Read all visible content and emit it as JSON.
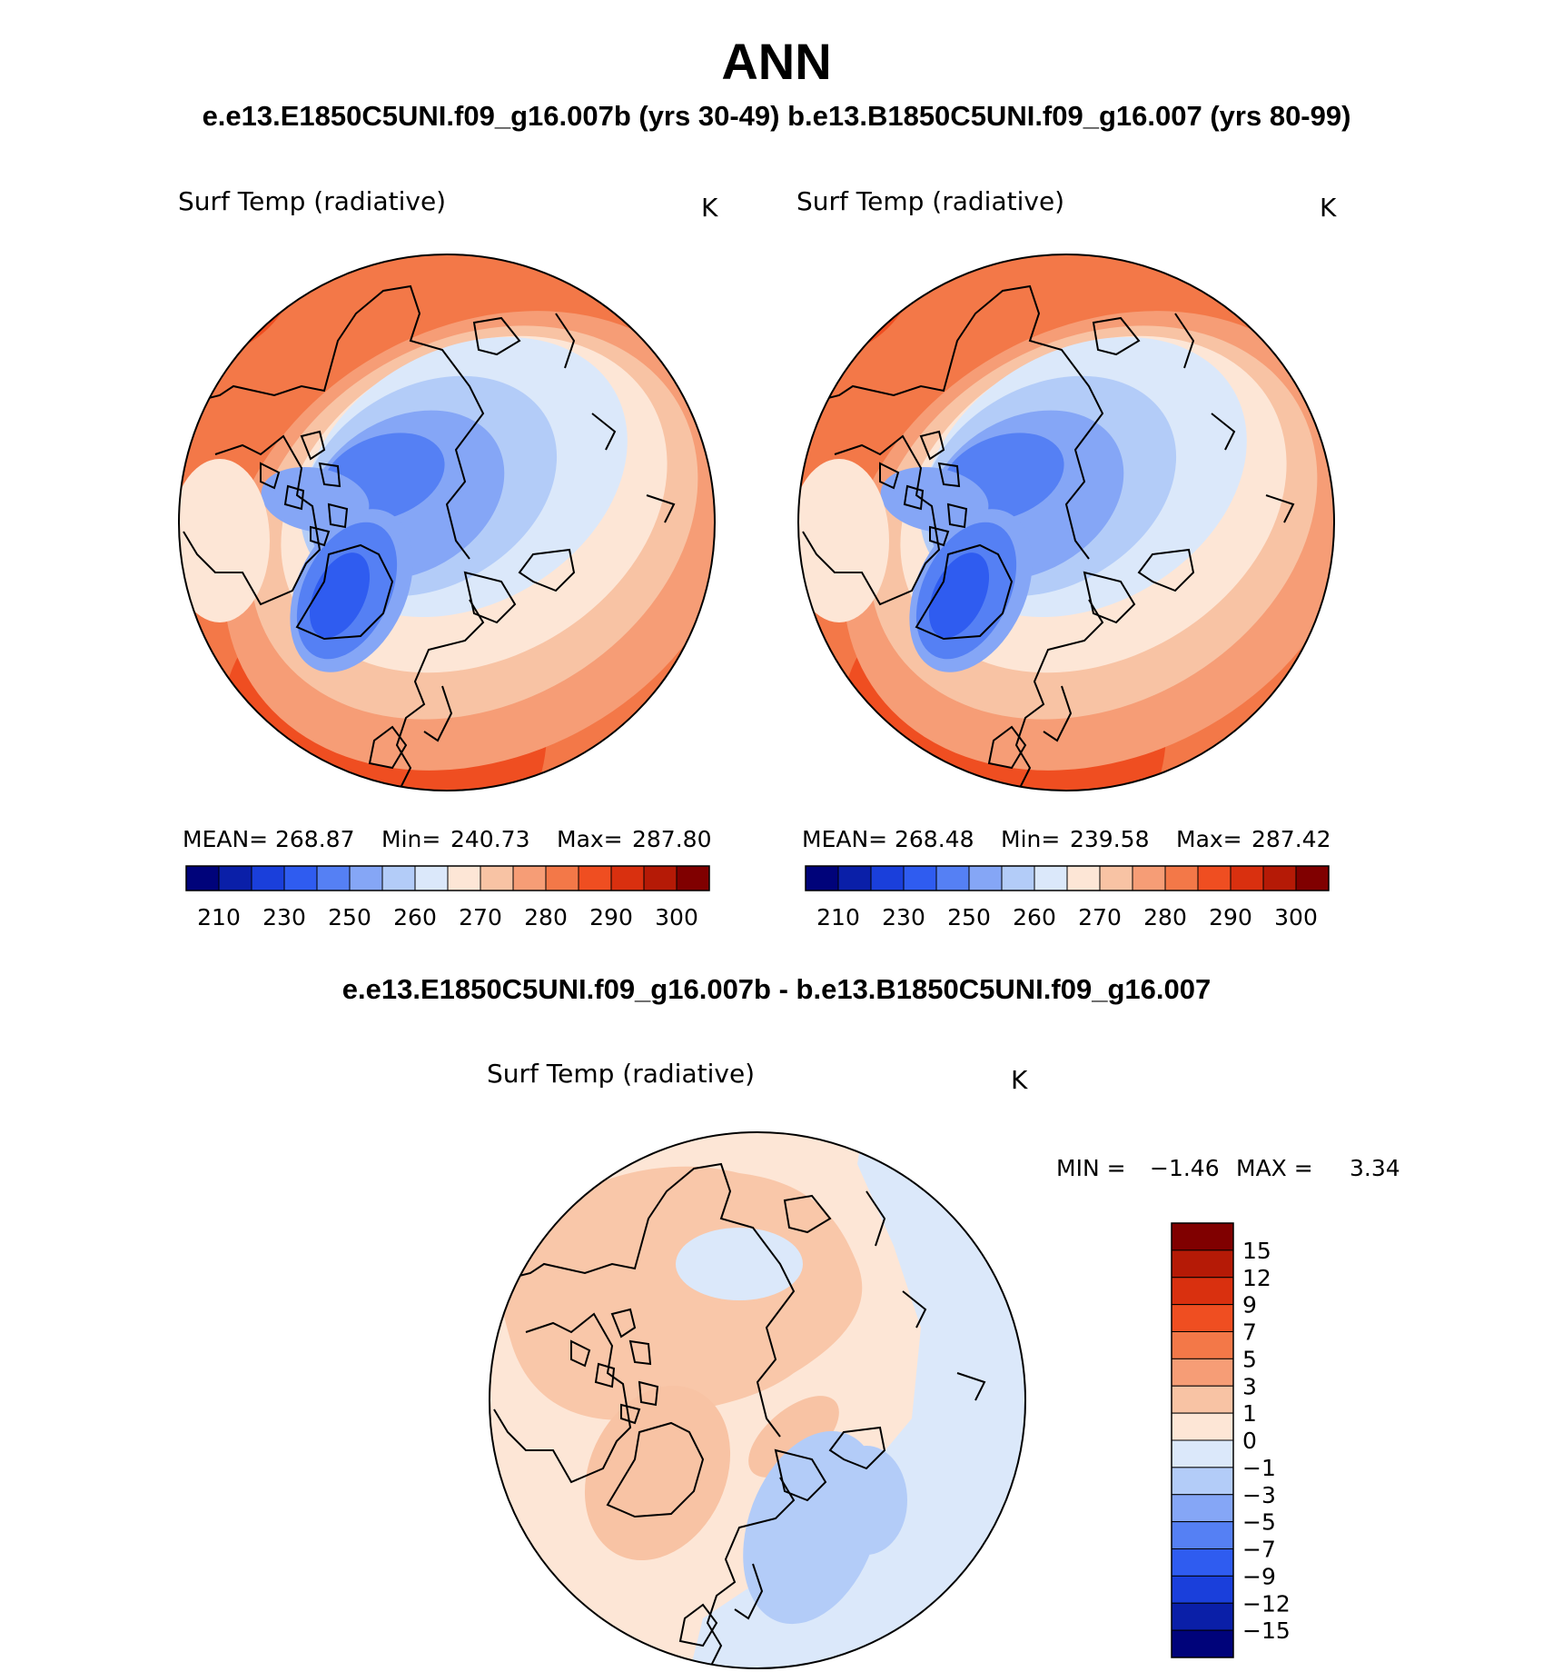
{
  "figure": {
    "title": "ANN",
    "subtitle": "e.e13.E1850C5UNI.f09_g16.007b (yrs 30-49)  b.e13.B1850C5UNI.f09_g16.007 (yrs 80-99)",
    "difference_title": "e.e13.E1850C5UNI.f09_g16.007b - b.e13.B1850C5UNI.f09_g16.007"
  },
  "chart_data": [
    {
      "type": "heatmap",
      "projection": "north polar stereographic",
      "title": "Surf Temp (radiative)",
      "units": "K",
      "stats": {
        "mean_label": "MEAN=",
        "mean": "268.87",
        "min_label": "Min=",
        "min": "240.73",
        "max_label": "Max=",
        "max": "287.80"
      },
      "colorbar": {
        "orientation": "horizontal",
        "tick_labels": [
          "210",
          "230",
          "250",
          "260",
          "270",
          "280",
          "290",
          "300"
        ],
        "colors": [
          "#00037a",
          "#0a1fa8",
          "#1a3fdb",
          "#2f5cf0",
          "#5580f4",
          "#85a6f6",
          "#b3ccf8",
          "#dbe8fa",
          "#fde6d6",
          "#f8c3a4",
          "#f69d76",
          "#f37848",
          "#ef4e21",
          "#d9300f",
          "#b51a06",
          "#800000"
        ]
      }
    },
    {
      "type": "heatmap",
      "projection": "north polar stereographic",
      "title": "Surf Temp (radiative)",
      "units": "K",
      "stats": {
        "mean_label": "MEAN=",
        "mean": "268.48",
        "min_label": "Min=",
        "min": "239.58",
        "max_label": "Max=",
        "max": "287.42"
      },
      "colorbar": {
        "orientation": "horizontal",
        "tick_labels": [
          "210",
          "230",
          "250",
          "260",
          "270",
          "280",
          "290",
          "300"
        ],
        "colors": [
          "#00037a",
          "#0a1fa8",
          "#1a3fdb",
          "#2f5cf0",
          "#5580f4",
          "#85a6f6",
          "#b3ccf8",
          "#dbe8fa",
          "#fde6d6",
          "#f8c3a4",
          "#f69d76",
          "#f37848",
          "#ef4e21",
          "#d9300f",
          "#b51a06",
          "#800000"
        ]
      }
    },
    {
      "type": "heatmap",
      "projection": "north polar stereographic",
      "title": "Surf Temp (radiative)",
      "units": "K",
      "stats": {
        "min_label": "MIN =",
        "min": "−1.46",
        "max_label": "MAX =",
        "max": "3.34"
      },
      "colorbar": {
        "orientation": "vertical",
        "tick_labels": [
          "15",
          "12",
          "9",
          "7",
          "5",
          "3",
          "1",
          "0",
          "−1",
          "−3",
          "−5",
          "−7",
          "−9",
          "−12",
          "−15"
        ],
        "colors": [
          "#800000",
          "#b51a06",
          "#d9300f",
          "#ef4e21",
          "#f37848",
          "#f69d76",
          "#f8c3a4",
          "#fde6d6",
          "#dbe8fa",
          "#b3ccf8",
          "#85a6f6",
          "#5580f4",
          "#2f5cf0",
          "#1a3fdb",
          "#0a1fa8",
          "#00037a"
        ]
      }
    }
  ]
}
